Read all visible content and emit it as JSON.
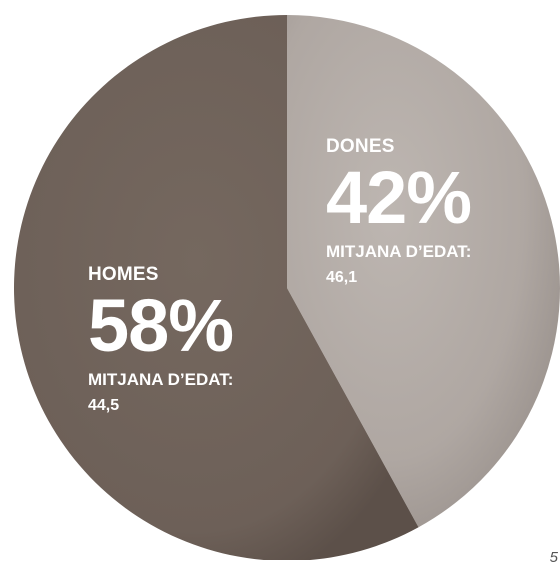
{
  "chart_data": {
    "type": "pie",
    "slices": [
      {
        "name": "DONES",
        "value": 42,
        "percent_label": "42%",
        "avg_age_label": "MITJANA D’EDAT:",
        "avg_age_value": "46,1",
        "color": "#b1a9a4"
      },
      {
        "name": "HOMES",
        "value": 58,
        "percent_label": "58%",
        "avg_age_label": "MITJANA D’EDAT:",
        "avg_age_value": "44,5",
        "color": "#6f625b"
      }
    ]
  },
  "corner_text": "5"
}
